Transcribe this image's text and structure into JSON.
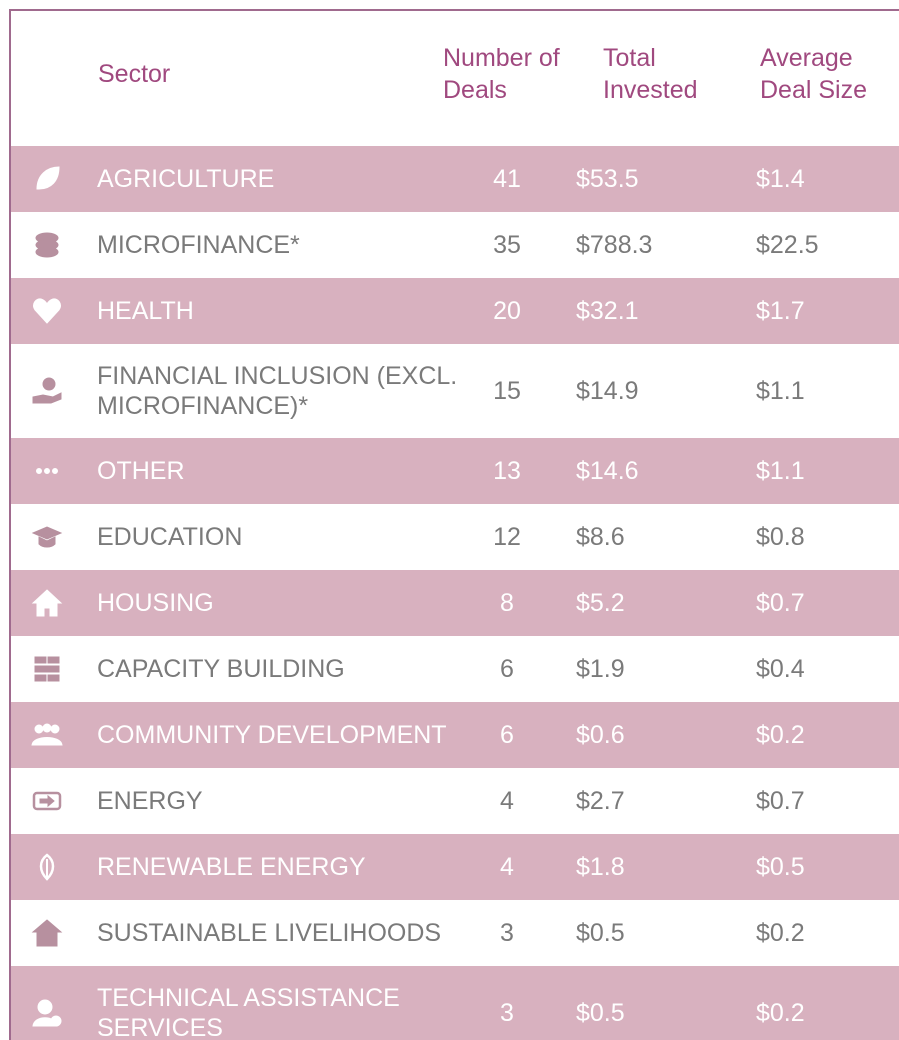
{
  "header": {
    "sector": "Sector",
    "deals": "Number of Deals",
    "total": "Total Invested",
    "avg": "Average Deal Size"
  },
  "table": {
    "rows": [
      [
        "AGRICULTURE",
        41,
        "$53.5",
        "$1.4"
      ],
      [
        "MICROFINANCE*",
        35,
        "$788.3",
        "$22.5"
      ],
      [
        "HEALTH",
        20,
        "$32.1",
        "$1.7"
      ],
      [
        "FINANCIAL INCLUSION (EXCL. MICROFINANCE)*",
        15,
        "$14.9",
        "$1.1"
      ],
      [
        "OTHER",
        13,
        "$14.6",
        "$1.1"
      ],
      [
        "EDUCATION",
        12,
        "$8.6",
        "$0.8"
      ],
      [
        "HOUSING",
        8,
        "$5.2",
        "$0.7"
      ],
      [
        "CAPACITY BUILDING",
        6,
        "$1.9",
        "$0.4"
      ],
      [
        "COMMUNITY DEVELOPMENT",
        6,
        "$0.6",
        "$0.2"
      ],
      [
        "ENERGY",
        4,
        "$2.7",
        "$0.7"
      ],
      [
        "RENEWABLE ENERGY",
        4,
        "$1.8",
        "$0.5"
      ],
      [
        "SUSTAINABLE LIVELIHOODS",
        3,
        "$0.5",
        "$0.2"
      ],
      [
        "TECHNICAL ASSISTANCE SERVICES",
        3,
        "$0.5",
        "$0.2"
      ]
    ]
  }
}
